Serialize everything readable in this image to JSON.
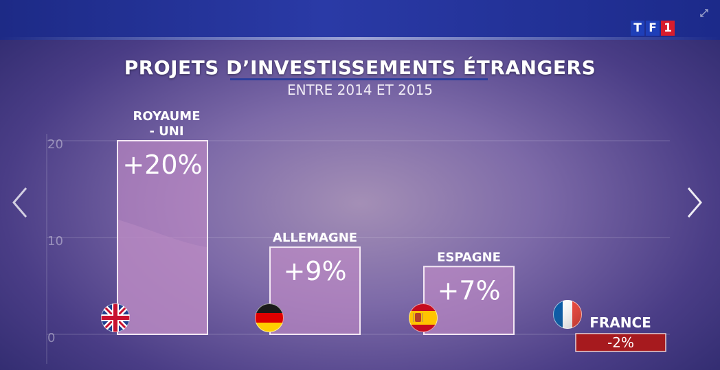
{
  "header": {
    "title": "PROJETS D’INVESTISSEMENTS ÉTRANGERS",
    "subtitle": "ENTRE 2014 ET 2015",
    "logo_text": [
      "T",
      "F",
      "1"
    ]
  },
  "colors": {
    "bar_fill": "#c58ec8",
    "bar_border": "#f4e8f4",
    "negative_fill": "#a61a1e",
    "flag_uk_blue": "#1f3f8f",
    "flag_uk_red": "#c8102e",
    "flag_de_black": "#1a1a1a",
    "flag_de_red": "#dd0000",
    "flag_de_gold": "#ffce00",
    "flag_es_red": "#c60b1e",
    "flag_es_yellow": "#ffc400",
    "flag_fr_blue": "#0055a4",
    "flag_fr_white": "#ffffff",
    "flag_fr_red": "#ef4135"
  },
  "icons": {
    "nav_left": "chevron-left-icon",
    "nav_right": "chevron-right-icon",
    "expand": "expand-icon"
  },
  "chart_data": {
    "type": "bar",
    "title": "PROJETS D’INVESTISSEMENTS ÉTRANGERS",
    "subtitle": "ENTRE 2014 ET 2015",
    "categories": [
      "ROYAUME - UNI",
      "ALLEMAGNE",
      "ESPAGNE",
      "FRANCE"
    ],
    "category_lines": [
      [
        "ROYAUME",
        "- UNI"
      ],
      [
        "ALLEMAGNE"
      ],
      [
        "ESPAGNE"
      ],
      [
        "FRANCE"
      ]
    ],
    "values": [
      20,
      9,
      7,
      -2
    ],
    "value_labels": [
      "+20%",
      "+9%",
      "+7%",
      "-2%"
    ],
    "flags": [
      "flag-uk-icon",
      "flag-germany-icon",
      "flag-spain-icon",
      "flag-france-icon"
    ],
    "yticks": [
      0,
      10,
      20
    ],
    "ylim": [
      0,
      20
    ],
    "grid": true,
    "xlabel": "",
    "ylabel": ""
  }
}
